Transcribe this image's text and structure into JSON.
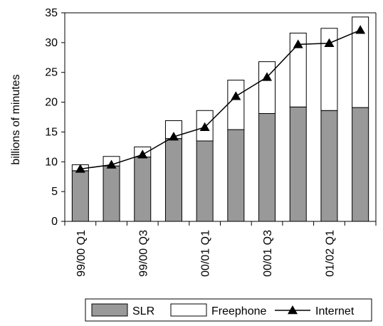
{
  "chart_data": {
    "type": "bar",
    "stacked": true,
    "categories": [
      "99/00 Q1",
      "",
      "99/00 Q3",
      "",
      "00/01 Q1",
      "",
      "00/01 Q3",
      "",
      "01/02 Q1",
      ""
    ],
    "series": [
      {
        "name": "SLR",
        "kind": "bar",
        "color": "#999999",
        "values": [
          8.5,
          9.3,
          10.8,
          13.9,
          13.5,
          15.4,
          18.1,
          19.2,
          18.6,
          19.1
        ]
      },
      {
        "name": "Freephone",
        "kind": "bar",
        "color": "#ffffff",
        "values": [
          1.0,
          1.6,
          1.7,
          3.0,
          5.1,
          8.3,
          8.7,
          12.4,
          13.8,
          15.2
        ]
      },
      {
        "name": "Internet",
        "kind": "line",
        "color": "#000000",
        "marker": "triangle",
        "values": [
          8.8,
          9.5,
          11.2,
          14.2,
          15.8,
          21.0,
          24.2,
          29.7,
          29.9,
          32.1
        ]
      }
    ],
    "ylabel": "billions of minutes",
    "xlabel": "",
    "ylim": [
      0,
      35
    ],
    "yticks": [
      0,
      5,
      10,
      15,
      20,
      25,
      30,
      35
    ],
    "grid": false,
    "legend_position": "bottom"
  }
}
